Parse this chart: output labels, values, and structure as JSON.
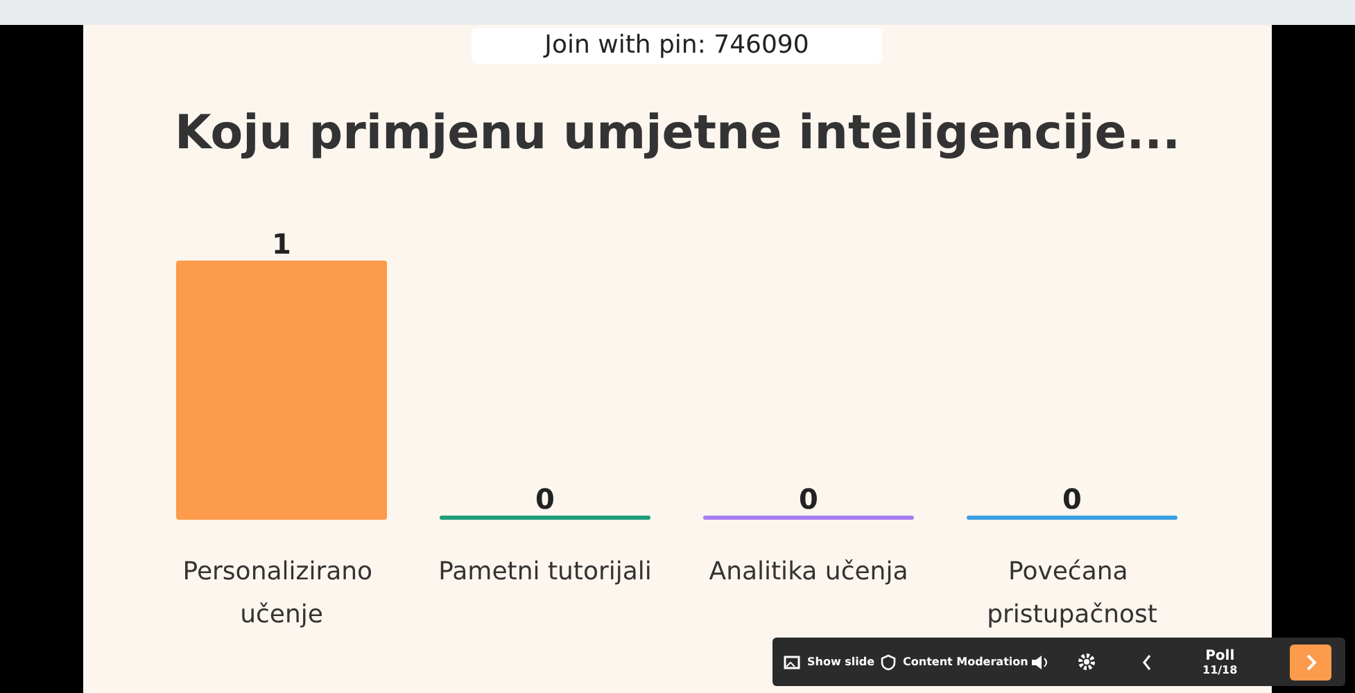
{
  "chart_data": {
    "type": "bar",
    "title": "Koju primjenu umjetne inteligencije...",
    "categories": [
      "Personalizirano učenje",
      "Pametni tutorijali",
      "Analitika učenja",
      "Povećana pristupačnost"
    ],
    "values": [
      1,
      0,
      0,
      0
    ],
    "colors": [
      "#fb9b4b",
      "#1f9e78",
      "#a77ef0",
      "#3a9fe0"
    ],
    "data_labels": true,
    "annotations": [
      "Join with pin: 746090",
      "Show slide",
      "Content Moderation",
      "Poll",
      "11/18"
    ]
  }
}
